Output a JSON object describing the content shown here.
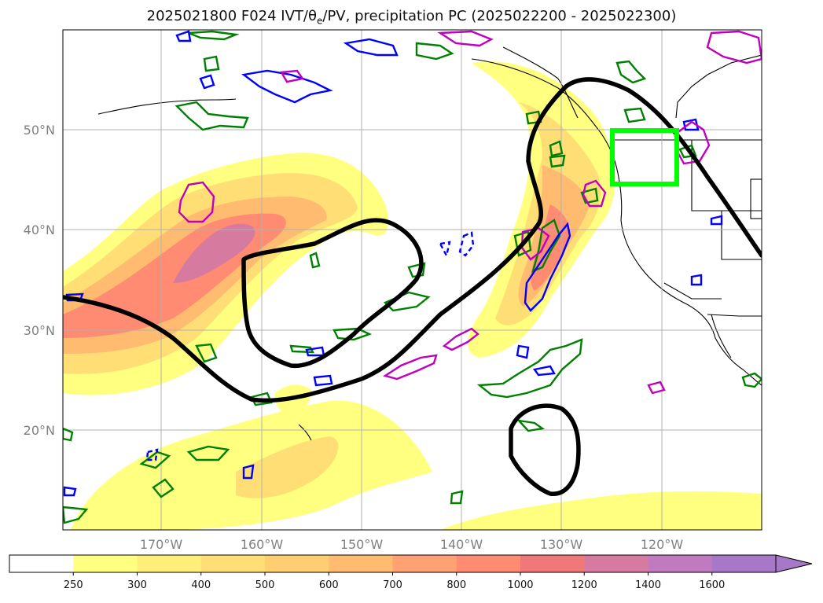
{
  "title": "2025021800 F024 IVT/θe/PV, precipitation PC (2025022200 - 2025022300)",
  "latitude_labels": [
    "50°N",
    "40°N",
    "30°N",
    "20°N"
  ],
  "longitude_labels": [
    "170°W",
    "160°W",
    "150°W",
    "140°W",
    "130°W",
    "120°W"
  ],
  "colorbar": {
    "levels": [
      "250",
      "300",
      "400",
      "500",
      "600",
      "700",
      "800",
      "1000",
      "1200",
      "1400",
      "1600"
    ],
    "colors": [
      "#ffffff",
      "#ffff80",
      "#ffef7a",
      "#ffdf75",
      "#ffce70",
      "#ffbb70",
      "#ffa172",
      "#ff8b72",
      "#f07878",
      "#d77aa0",
      "#c07ac0",
      "#a878c8"
    ]
  },
  "legend_colors": {
    "ivt_fill_base": "#ffff80",
    "theta_e_contour": "#000000",
    "pv_positive": "#008000",
    "pv_negative": "#0000ff",
    "magenta_contour": "#c000c0",
    "region_box": "#00ff00"
  }
}
